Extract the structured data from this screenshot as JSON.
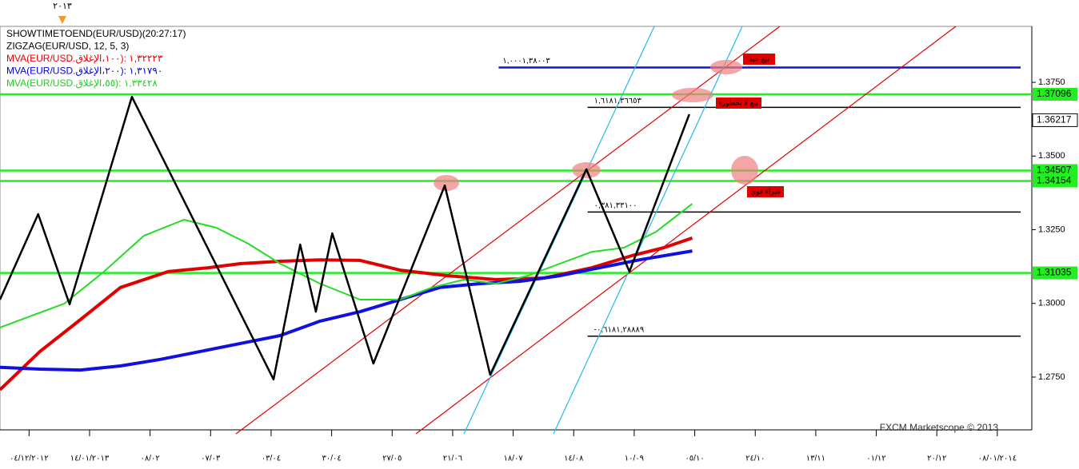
{
  "chart_data": {
    "type": "line",
    "top_label": "٢٠١٣",
    "legend_lines": [
      {
        "text": "SHOWTIMETOEND(EUR/USD)(20:27:17)",
        "color": "#000000"
      },
      {
        "text": "ZIGZAG(EUR/USD, 12, 5, 3)",
        "color": "#000000"
      },
      {
        "text": "MVA(EUR/USD.١٠٠،الإغلاق): ١,٣٢٢٢٣",
        "color": "#e00000"
      },
      {
        "text": "MVA(EUR/USD.٢٠٠،الإغلاق): ١,٣١٧٩٠",
        "color": "#0000e0"
      },
      {
        "text": "MVA(EUR/USD.٥٥،الإغلاق): ١,٣٣٤٢٨",
        "color": "#22cc22"
      }
    ],
    "watermark": "FXCM Marketscope © 2013",
    "xlim": [
      -0.48,
      16.57
    ],
    "xticks": [
      {
        "value": 0,
        "label": "٠٤/١٢/٢٠١٢"
      },
      {
        "value": 1,
        "label": "١٤/٠١/٢٠١٣"
      },
      {
        "value": 2,
        "label": "٠٨/٠٢"
      },
      {
        "value": 3,
        "label": "٠٧/٠٣"
      },
      {
        "value": 4,
        "label": "٠٣/٠٤"
      },
      {
        "value": 5,
        "label": "٣٠/٠٤"
      },
      {
        "value": 6,
        "label": "٢٧/٠٥"
      },
      {
        "value": 7,
        "label": "٢١/٠٦"
      },
      {
        "value": 8,
        "label": "١٨/٠٧"
      },
      {
        "value": 9,
        "label": "١٤/٠٨"
      },
      {
        "value": 10,
        "label": "١٠/٠٩"
      },
      {
        "value": 11,
        "label": "٠٥/١٠"
      },
      {
        "value": 12,
        "label": "٢٤/١٠"
      },
      {
        "value": 13,
        "label": "١٣/١١"
      },
      {
        "value": 14,
        "label": "٠١/١٢"
      },
      {
        "value": 15,
        "label": "٢٠/١٢"
      },
      {
        "value": 16,
        "label": "٠٨/٠١/٢٠١٤"
      }
    ],
    "ylim": [
      1.2571,
      1.394
    ],
    "yticks": [
      {
        "value": 1.275,
        "label": "1.2750"
      },
      {
        "value": 1.3,
        "label": "1.3000"
      },
      {
        "value": 1.325,
        "label": "1.3250"
      },
      {
        "value": 1.35,
        "label": "1.3500"
      },
      {
        "value": 1.375,
        "label": "1.3750"
      }
    ],
    "series": [
      {
        "color": "#e00000",
        "width": 4,
        "x": [
          -0.48,
          0.18,
          0.85,
          1.51,
          2.3,
          2.96,
          3.49,
          4.15,
          4.81,
          5.47,
          6.13,
          6.92,
          7.71,
          8.51,
          9.3,
          9.96,
          10.49,
          10.96
        ],
        "values": [
          1.2707,
          1.2837,
          1.2945,
          1.3054,
          1.3108,
          1.3121,
          1.3135,
          1.3143,
          1.3148,
          1.3146,
          1.3113,
          1.3094,
          1.3081,
          1.3086,
          1.3121,
          1.3162,
          1.3189,
          1.3222
        ]
      },
      {
        "color": "#1010e0",
        "width": 4,
        "x": [
          -0.48,
          0.18,
          0.85,
          1.51,
          2.17,
          2.83,
          3.49,
          4.15,
          4.81,
          5.47,
          6.13,
          6.79,
          7.45,
          8.11,
          8.77,
          9.43,
          10.09,
          10.96
        ],
        "values": [
          1.2783,
          1.2777,
          1.2774,
          1.2788,
          1.281,
          1.2837,
          1.2864,
          1.2891,
          1.294,
          1.2972,
          1.3013,
          1.3054,
          1.3067,
          1.3075,
          1.3094,
          1.3121,
          1.3148,
          1.3178
        ]
      },
      {
        "color": "#22dd22",
        "width": 2,
        "x": [
          -0.48,
          0.05,
          0.58,
          1.24,
          1.9,
          2.56,
          3.09,
          3.62,
          4.15,
          4.81,
          5.47,
          6.13,
          6.66,
          7.19,
          7.71,
          8.24,
          8.77,
          9.3,
          9.83,
          10.36,
          10.96
        ],
        "values": [
          1.2918,
          1.2959,
          1.2999,
          1.3108,
          1.323,
          1.3284,
          1.3257,
          1.3203,
          1.3135,
          1.3067,
          1.3013,
          1.3013,
          1.3054,
          1.3081,
          1.3067,
          1.3094,
          1.3135,
          1.3175,
          1.3189,
          1.3243,
          1.3338
        ]
      },
      {
        "color": "#000000",
        "width": 2.5,
        "x": [
          -0.48,
          0.15,
          0.67,
          1.7,
          4.04,
          4.48,
          4.74,
          5.01,
          5.69,
          6.87,
          7.62,
          9.21,
          9.92,
          10.91
        ],
        "values": [
          1.3013,
          1.3303,
          1.2997,
          1.3701,
          1.2742,
          1.32,
          1.2972,
          1.3238,
          1.2796,
          1.34,
          1.2758,
          1.3455,
          1.3108,
          1.3642
        ]
      }
    ],
    "levels": [
      {
        "value": 1.38003,
        "color": "#1010e0",
        "label": "١,٠٠٠١,٣٨٠٠٣",
        "x_start": 7.76
      },
      {
        "value": 1.37096,
        "color": "#22ee22",
        "value_label": "1.37096"
      },
      {
        "value": 1.36653,
        "color": "#000000",
        "label": "١,٦١٨١,٣٦٦٥٣",
        "x_start": 9.23
      },
      {
        "value": 1.34507,
        "color": "#22ee22",
        "value_label": "1.34507"
      },
      {
        "value": 1.34154,
        "color": "#22ee22",
        "value_label": "1.34154"
      },
      {
        "value": 1.331,
        "color": "#000000",
        "label": "٠,٣٨١,٣٣١٠٠",
        "x_start": 9.23
      },
      {
        "value": 1.31035,
        "color": "#22ee22",
        "value_label": "1.31035"
      },
      {
        "value": 1.28889,
        "color": "#000000",
        "label": "-٠,٦١٨١,٢٨٨٨٩",
        "x_start": 9.23
      }
    ],
    "current_price": {
      "value": 1.36217,
      "label": "1.36217"
    },
    "annotations": [
      "بيع جيد",
      "بيع لا بخطورة",
      "شراء قوي"
    ]
  }
}
